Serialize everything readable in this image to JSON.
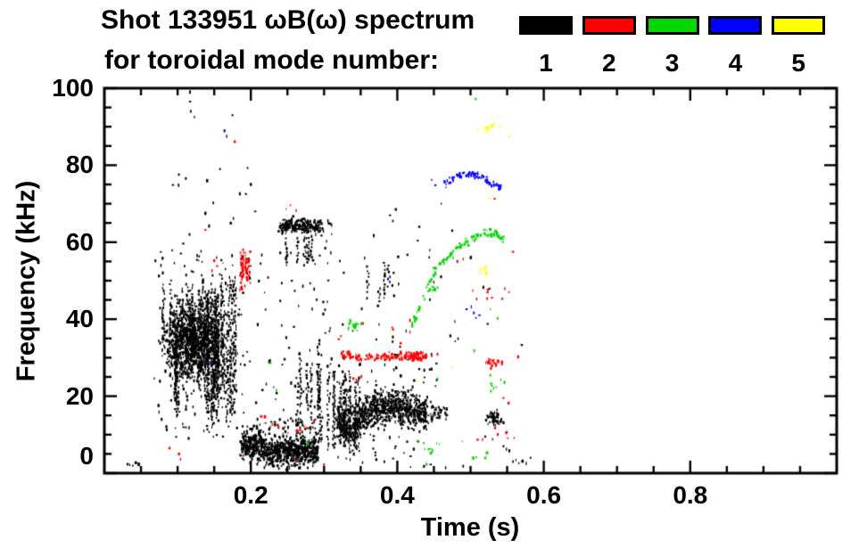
{
  "header": {
    "title_line1": "Shot 133951 ωB(ω) spectrum",
    "title_line2": "for toroidal mode number:"
  },
  "legend": {
    "modes": [
      {
        "label": "1",
        "color": "#000000"
      },
      {
        "label": "2",
        "color": "#ff0000"
      },
      {
        "label": "3",
        "color": "#00d800"
      },
      {
        "label": "4",
        "color": "#0000ff"
      },
      {
        "label": "5",
        "color": "#ffff00"
      }
    ]
  },
  "axes": {
    "xlabel": "Time (s)",
    "ylabel": "Frequency (kHz)",
    "xtick_labels": [
      "0.2",
      "0.4",
      "0.6",
      "0.8"
    ],
    "ytick_labels": [
      "0",
      "20",
      "40",
      "60",
      "80",
      "100"
    ]
  },
  "chart_data": {
    "type": "scatter",
    "title": "Shot 133951 ωB(ω) spectrum for toroidal mode number: 1-5",
    "xlabel": "Time (s)",
    "ylabel": "Frequency (kHz)",
    "xlim": [
      0.0,
      1.0
    ],
    "ylim": [
      0,
      100
    ],
    "xticks": [
      0.2,
      0.4,
      0.6,
      0.8
    ],
    "yticks": [
      0,
      20,
      40,
      60,
      80,
      100
    ],
    "x_minor_step": 0.05,
    "y_minor_step": 5,
    "grid": false,
    "legend_position": "top",
    "seed": 133951,
    "mode_colors": {
      "1": "#000000",
      "2": "#ff0000",
      "3": "#00d800",
      "4": "#0000ff",
      "5": "#ffff00"
    },
    "clusters": [
      {
        "mode": 1,
        "shape": "scatter",
        "t": [
          0.027,
          0.052
        ],
        "f": [
          0.8,
          2.8
        ],
        "count": 7
      },
      {
        "mode": 1,
        "shape": "blob",
        "t": [
          0.079,
          0.155
        ],
        "f": [
          24,
          45
        ],
        "count": 850
      },
      {
        "mode": 1,
        "shape": "vstreaks",
        "t": [
          0.076,
          0.168
        ],
        "f": [
          14,
          53
        ],
        "streaks": 38,
        "len": [
          8,
          26
        ]
      },
      {
        "mode": 1,
        "shape": "vstreaks",
        "t": [
          0.14,
          0.181
        ],
        "f": [
          11,
          52
        ],
        "streaks": 13,
        "len": [
          22,
          40
        ]
      },
      {
        "mode": 1,
        "shape": "scatter",
        "t": [
          0.068,
          0.19
        ],
        "f": [
          9,
          58
        ],
        "count": 150
      },
      {
        "mode": 1,
        "shape": "scatter",
        "t": [
          0.09,
          0.21
        ],
        "f": [
          55,
          80
        ],
        "count": 13
      },
      {
        "mode": 1,
        "shape": "points",
        "pts": [
          [
            0.117,
            99
          ],
          [
            0.117,
            96.5
          ],
          [
            0.118,
            94
          ],
          [
            0.123,
            92.5
          ],
          [
            0.164,
            89
          ],
          [
            0.167,
            87.5
          ],
          [
            0.175,
            93
          ],
          [
            0.158,
            79
          ],
          [
            0.2,
            75
          ],
          [
            0.206,
            68
          ],
          [
            0.138,
            67.5
          ],
          [
            0.143,
            64.2
          ]
        ]
      },
      {
        "mode": 1,
        "shape": "path",
        "pts": [
          [
            0.187,
            8
          ],
          [
            0.21,
            7
          ],
          [
            0.235,
            5.8
          ],
          [
            0.265,
            5.6
          ],
          [
            0.292,
            6.2
          ]
        ],
        "count": 720,
        "jitter": 4.0
      },
      {
        "mode": 1,
        "shape": "scatter",
        "t": [
          0.186,
          0.3
        ],
        "f": [
          10.5,
          14.5
        ],
        "count": 45
      },
      {
        "mode": 1,
        "shape": "scatter",
        "t": [
          0.19,
          0.31
        ],
        "f": [
          15,
          58
        ],
        "count": 65
      },
      {
        "mode": 1,
        "shape": "vstreaks",
        "t": [
          0.262,
          0.302
        ],
        "f": [
          8,
          36
        ],
        "streaks": 7,
        "len": [
          10,
          22
        ]
      },
      {
        "mode": 1,
        "shape": "path",
        "pts": [
          [
            0.239,
            63.5
          ],
          [
            0.258,
            64.8
          ],
          [
            0.275,
            64.2
          ],
          [
            0.296,
            63.6
          ]
        ],
        "count": 230,
        "jitter": 1.8
      },
      {
        "mode": 1,
        "shape": "vstreaks",
        "t": [
          0.242,
          0.292
        ],
        "f": [
          54,
          62
        ],
        "streaks": 8,
        "len": [
          5,
          9
        ]
      },
      {
        "mode": 1,
        "shape": "scatter",
        "t": [
          0.296,
          0.312
        ],
        "f": [
          60,
          66
        ],
        "count": 8
      },
      {
        "mode": 1,
        "shape": "vstreaks",
        "t": [
          0.305,
          0.317
        ],
        "f": [
          4,
          28
        ],
        "streaks": 3,
        "len": [
          20,
          24
        ]
      },
      {
        "mode": 1,
        "shape": "path",
        "pts": [
          [
            0.318,
            14
          ],
          [
            0.34,
            12.5
          ],
          [
            0.36,
            16
          ],
          [
            0.385,
            17
          ],
          [
            0.41,
            17
          ],
          [
            0.44,
            15.5
          ]
        ],
        "count": 800,
        "jitter": 4.6
      },
      {
        "mode": 1,
        "shape": "vstreaks",
        "t": [
          0.317,
          0.352
        ],
        "f": [
          5,
          27
        ],
        "streaks": 9,
        "len": [
          10,
          20
        ]
      },
      {
        "mode": 1,
        "shape": "scatter",
        "t": [
          0.315,
          0.455
        ],
        "f": [
          1.5,
          28
        ],
        "count": 90
      },
      {
        "mode": 1,
        "shape": "path",
        "pts": [
          [
            0.443,
            16
          ],
          [
            0.468,
            16
          ]
        ],
        "count": 40,
        "jitter": 2.2
      },
      {
        "mode": 1,
        "shape": "scatter",
        "t": [
          0.3,
          0.45
        ],
        "f": [
          28,
          62
        ],
        "count": 40
      },
      {
        "mode": 1,
        "shape": "vstreaks",
        "t": [
          0.36,
          0.4
        ],
        "f": [
          43,
          55
        ],
        "streaks": 4,
        "len": [
          5,
          9
        ]
      },
      {
        "mode": 1,
        "shape": "points",
        "pts": [
          [
            0.39,
            67
          ],
          [
            0.394,
            65.5
          ],
          [
            0.398,
            68.5
          ],
          [
            0.43,
            64
          ],
          [
            0.46,
            70
          ],
          [
            0.475,
            63
          ]
        ]
      },
      {
        "mode": 1,
        "shape": "scatter",
        "t": [
          0.435,
          0.53
        ],
        "f": [
          24,
          60
        ],
        "count": 10
      },
      {
        "mode": 1,
        "shape": "blob",
        "t": [
          0.518,
          0.549
        ],
        "f": [
          12,
          16.5
        ],
        "count": 55
      },
      {
        "mode": 1,
        "shape": "points",
        "pts": [
          [
            0.545,
            7
          ],
          [
            0.549,
            6.2
          ],
          [
            0.553,
            5.8
          ],
          [
            0.558,
            3
          ],
          [
            0.562,
            3.4
          ],
          [
            0.566,
            2.6
          ],
          [
            0.571,
            3.1
          ],
          [
            0.576,
            2.5
          ],
          [
            0.52,
            9.5
          ],
          [
            0.53,
            8.8
          ],
          [
            0.57,
            33.3
          ],
          [
            0.582,
            4
          ],
          [
            0.49,
            1.8
          ],
          [
            0.466,
            1.4
          ]
        ]
      },
      {
        "mode": 2,
        "shape": "points",
        "pts": [
          [
            0.089,
            6.5
          ],
          [
            0.102,
            5
          ],
          [
            0.104,
            3.6
          ],
          [
            0.185,
            4.8
          ],
          [
            0.26,
            3.7
          ],
          [
            0.3,
            2.2
          ]
        ]
      },
      {
        "mode": 2,
        "shape": "points",
        "pts": [
          [
            0.15,
            55.2
          ],
          [
            0.154,
            53.8
          ],
          [
            0.162,
            54.6
          ],
          [
            0.178,
            86.1
          ],
          [
            0.138,
            63.2
          ],
          [
            0.147,
            52.6
          ]
        ]
      },
      {
        "mode": 2,
        "shape": "vstreaks",
        "t": [
          0.184,
          0.199
        ],
        "f": [
          47,
          59
        ],
        "streaks": 5,
        "len": [
          7,
          11
        ]
      },
      {
        "mode": 2,
        "shape": "blob",
        "t": [
          0.183,
          0.2
        ],
        "f": [
          48,
          58
        ],
        "count": 18
      },
      {
        "mode": 2,
        "shape": "path",
        "pts": [
          [
            0.208,
            15.5
          ],
          [
            0.23,
            12.5
          ],
          [
            0.252,
            11
          ],
          [
            0.272,
            11.3
          ],
          [
            0.29,
            13.8
          ]
        ],
        "count": 16,
        "jitter": 0.7
      },
      {
        "mode": 2,
        "shape": "points",
        "pts": [
          [
            0.248,
            68.6
          ],
          [
            0.254,
            69.6
          ],
          [
            0.262,
            68.2
          ],
          [
            0.32,
            34.8
          ],
          [
            0.323,
            35.6
          ],
          [
            0.34,
            24.6
          ],
          [
            0.344,
            24.2
          ],
          [
            0.351,
            25.1
          ]
        ]
      },
      {
        "mode": 2,
        "shape": "path",
        "pts": [
          [
            0.322,
            30.5
          ],
          [
            0.36,
            30
          ],
          [
            0.4,
            30.3
          ],
          [
            0.438,
            30.3
          ]
        ],
        "count": 110,
        "jitter": 1.0
      },
      {
        "mode": 2,
        "shape": "blob",
        "t": [
          0.41,
          0.44
        ],
        "f": [
          28.8,
          31.8
        ],
        "count": 45
      },
      {
        "mode": 2,
        "shape": "scatter",
        "t": [
          0.35,
          0.42
        ],
        "f": [
          33,
          40
        ],
        "count": 6
      },
      {
        "mode": 2,
        "shape": "points",
        "pts": [
          [
            0.447,
            30.5
          ],
          [
            0.455,
            30.9
          ],
          [
            0.482,
            55
          ],
          [
            0.49,
            55.6
          ],
          [
            0.533,
            71.3
          ]
        ]
      },
      {
        "mode": 2,
        "shape": "scatter",
        "t": [
          0.5,
          0.553
        ],
        "f": [
          44,
          48
        ],
        "count": 9
      },
      {
        "mode": 2,
        "shape": "blob",
        "t": [
          0.517,
          0.543
        ],
        "f": [
          27.2,
          30.5
        ],
        "count": 20
      },
      {
        "mode": 2,
        "shape": "scatter",
        "t": [
          0.5,
          0.56
        ],
        "f": [
          8.5,
          12
        ],
        "count": 8
      },
      {
        "mode": 2,
        "shape": "points",
        "pts": [
          [
            0.545,
            19.5
          ],
          [
            0.552,
            18.2
          ],
          [
            0.558,
            57.5
          ],
          [
            0.565,
            30.2
          ]
        ]
      },
      {
        "mode": 3,
        "shape": "points",
        "pts": [
          [
            0.141,
            38.9
          ],
          [
            0.227,
            28.7
          ],
          [
            0.235,
            21.5
          ],
          [
            0.278,
            7.6
          ],
          [
            0.455,
            24.5
          ]
        ]
      },
      {
        "mode": 3,
        "shape": "blob",
        "t": [
          0.325,
          0.356
        ],
        "f": [
          36.5,
          39.8
        ],
        "count": 16
      },
      {
        "mode": 3,
        "shape": "path",
        "pts": [
          [
            0.418,
            37
          ],
          [
            0.43,
            42.5
          ],
          [
            0.44,
            48
          ],
          [
            0.452,
            52.5
          ],
          [
            0.465,
            55.5
          ],
          [
            0.48,
            58
          ],
          [
            0.495,
            60
          ],
          [
            0.51,
            61.6
          ],
          [
            0.524,
            62.3
          ],
          [
            0.538,
            61.8
          ],
          [
            0.549,
            60.2
          ]
        ],
        "count": 120,
        "jitter": 1.0
      },
      {
        "mode": 3,
        "shape": "blob",
        "t": [
          0.442,
          0.458
        ],
        "f": [
          46.8,
          49
        ],
        "count": 9
      },
      {
        "mode": 3,
        "shape": "scatter",
        "t": [
          0.418,
          0.458
        ],
        "f": [
          4.8,
          8.8
        ],
        "count": 10
      },
      {
        "mode": 3,
        "shape": "scatter",
        "t": [
          0.488,
          0.534
        ],
        "f": [
          3.8,
          9
        ],
        "count": 7
      },
      {
        "mode": 3,
        "shape": "scatter",
        "t": [
          0.525,
          0.551
        ],
        "f": [
          20,
          25.5
        ],
        "count": 9
      },
      {
        "mode": 3,
        "shape": "points",
        "pts": [
          [
            0.507,
            97.2
          ],
          [
            0.527,
            42.6
          ],
          [
            0.537,
            40.2
          ],
          [
            0.44,
            2.3
          ],
          [
            0.505,
            31.8
          ]
        ]
      },
      {
        "mode": 4,
        "shape": "path",
        "pts": [
          [
            0.462,
            74.6
          ],
          [
            0.475,
            76.6
          ],
          [
            0.49,
            77.8
          ],
          [
            0.505,
            77.5
          ],
          [
            0.52,
            76.3
          ],
          [
            0.532,
            75.2
          ],
          [
            0.543,
            73.8
          ]
        ],
        "count": 75,
        "jitter": 0.9
      },
      {
        "mode": 4,
        "shape": "points",
        "pts": [
          [
            0.145,
            28.7
          ],
          [
            0.164,
            88.9
          ],
          [
            0.195,
            31.5
          ],
          [
            0.39,
            51
          ],
          [
            0.447,
            76.2
          ],
          [
            0.452,
            74.8
          ]
        ]
      },
      {
        "mode": 4,
        "shape": "scatter",
        "t": [
          0.478,
          0.517
        ],
        "f": [
          38.8,
          43.5
        ],
        "count": 6
      },
      {
        "mode": 5,
        "shape": "blob",
        "t": [
          0.51,
          0.543
        ],
        "f": [
          87.8,
          91.6
        ],
        "count": 13
      },
      {
        "mode": 5,
        "shape": "blob",
        "t": [
          0.505,
          0.533
        ],
        "f": [
          50.4,
          54.2
        ],
        "count": 8
      },
      {
        "mode": 5,
        "shape": "points",
        "pts": [
          [
            0.526,
            71.4
          ],
          [
            0.475,
            27.5
          ],
          [
            0.553,
            87.6
          ],
          [
            0.427,
            24
          ]
        ]
      }
    ]
  }
}
